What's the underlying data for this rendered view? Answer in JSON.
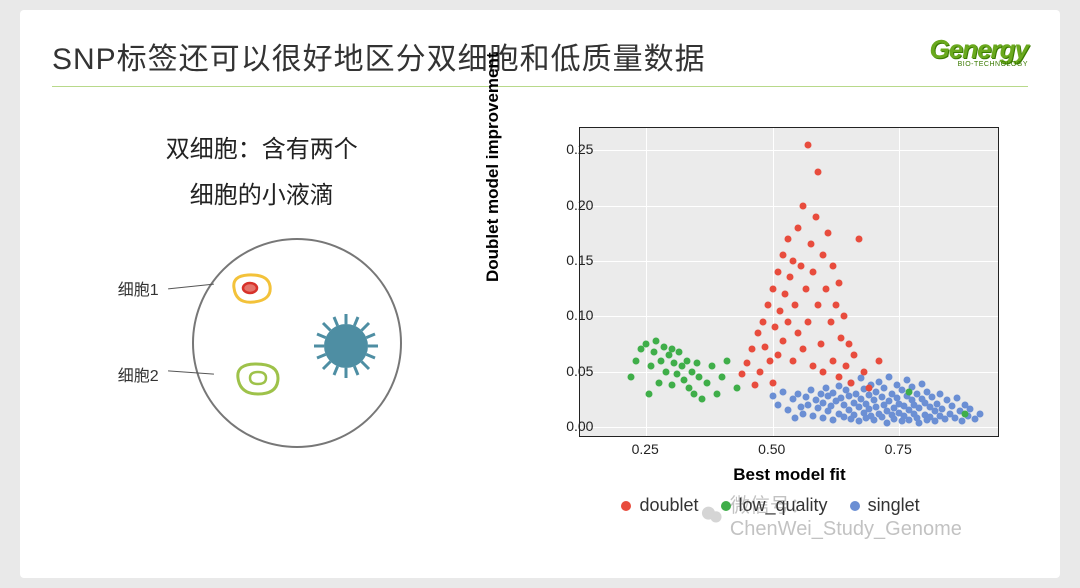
{
  "header": {
    "title": "SNP标签还可以很好地区分双细胞和低质量数据",
    "logo_main": "Genergy",
    "logo_sub": "BIO-TECHNOLOGY"
  },
  "left": {
    "caption_line1": "双细胞：含有两个",
    "caption_line2": "细胞的小液滴",
    "label_cell1": "细胞1",
    "label_cell2": "细胞2",
    "diagram_colors": {
      "droplet_border": "#777777",
      "cell1_outer": "#f3c23a",
      "cell1_inner_stroke": "#d7322a",
      "cell1_inner_fill": "#e5746b",
      "cell2_stroke": "#9ec24a",
      "virus_fill": "#4e8ea3",
      "virus_spike": "#4e8ea3"
    }
  },
  "chart": {
    "type": "scatter",
    "xlabel": "Best model fit",
    "ylabel": "Doublet model improvement",
    "xlim": [
      0.12,
      0.95
    ],
    "ylim": [
      -0.01,
      0.27
    ],
    "xticks": [
      0.25,
      0.5,
      0.75
    ],
    "yticks": [
      0.0,
      0.05,
      0.1,
      0.15,
      0.2,
      0.25
    ],
    "background_color": "#ebebeb",
    "grid_color": "#ffffff",
    "point_size": 7,
    "colors": {
      "doublet": "#e84c3d",
      "low_quality": "#3fae49",
      "singlet": "#6b8fd4"
    },
    "legend": {
      "items": [
        {
          "key": "doublet",
          "label": "doublet"
        },
        {
          "key": "low_quality",
          "label": "low_quality"
        },
        {
          "key": "singlet",
          "label": "singlet"
        }
      ]
    },
    "series": {
      "low_quality": [
        [
          0.22,
          0.045
        ],
        [
          0.23,
          0.06
        ],
        [
          0.24,
          0.07
        ],
        [
          0.25,
          0.075
        ],
        [
          0.255,
          0.03
        ],
        [
          0.26,
          0.055
        ],
        [
          0.265,
          0.068
        ],
        [
          0.27,
          0.078
        ],
        [
          0.275,
          0.04
        ],
        [
          0.28,
          0.06
        ],
        [
          0.285,
          0.072
        ],
        [
          0.29,
          0.05
        ],
        [
          0.295,
          0.065
        ],
        [
          0.3,
          0.07
        ],
        [
          0.3,
          0.038
        ],
        [
          0.305,
          0.058
        ],
        [
          0.31,
          0.048
        ],
        [
          0.315,
          0.068
        ],
        [
          0.32,
          0.055
        ],
        [
          0.325,
          0.042
        ],
        [
          0.33,
          0.06
        ],
        [
          0.335,
          0.035
        ],
        [
          0.34,
          0.05
        ],
        [
          0.345,
          0.03
        ],
        [
          0.35,
          0.058
        ],
        [
          0.355,
          0.045
        ],
        [
          0.36,
          0.025
        ],
        [
          0.37,
          0.04
        ],
        [
          0.38,
          0.055
        ],
        [
          0.39,
          0.03
        ],
        [
          0.4,
          0.045
        ],
        [
          0.41,
          0.06
        ],
        [
          0.43,
          0.035
        ],
        [
          0.77,
          0.032
        ],
        [
          0.88,
          0.012
        ]
      ],
      "doublet": [
        [
          0.44,
          0.048
        ],
        [
          0.45,
          0.058
        ],
        [
          0.46,
          0.07
        ],
        [
          0.465,
          0.038
        ],
        [
          0.47,
          0.085
        ],
        [
          0.475,
          0.05
        ],
        [
          0.48,
          0.095
        ],
        [
          0.485,
          0.072
        ],
        [
          0.49,
          0.11
        ],
        [
          0.495,
          0.06
        ],
        [
          0.5,
          0.125
        ],
        [
          0.5,
          0.04
        ],
        [
          0.505,
          0.09
        ],
        [
          0.51,
          0.14
        ],
        [
          0.51,
          0.065
        ],
        [
          0.515,
          0.105
        ],
        [
          0.52,
          0.155
        ],
        [
          0.52,
          0.078
        ],
        [
          0.525,
          0.12
        ],
        [
          0.53,
          0.17
        ],
        [
          0.53,
          0.095
        ],
        [
          0.535,
          0.135
        ],
        [
          0.54,
          0.06
        ],
        [
          0.54,
          0.15
        ],
        [
          0.545,
          0.11
        ],
        [
          0.55,
          0.18
        ],
        [
          0.55,
          0.085
        ],
        [
          0.555,
          0.145
        ],
        [
          0.56,
          0.07
        ],
        [
          0.56,
          0.2
        ],
        [
          0.565,
          0.125
        ],
        [
          0.57,
          0.255
        ],
        [
          0.57,
          0.095
        ],
        [
          0.575,
          0.165
        ],
        [
          0.58,
          0.055
        ],
        [
          0.58,
          0.14
        ],
        [
          0.585,
          0.19
        ],
        [
          0.59,
          0.11
        ],
        [
          0.59,
          0.23
        ],
        [
          0.595,
          0.075
        ],
        [
          0.6,
          0.155
        ],
        [
          0.6,
          0.05
        ],
        [
          0.605,
          0.125
        ],
        [
          0.61,
          0.175
        ],
        [
          0.615,
          0.095
        ],
        [
          0.62,
          0.06
        ],
        [
          0.62,
          0.145
        ],
        [
          0.625,
          0.11
        ],
        [
          0.63,
          0.045
        ],
        [
          0.63,
          0.13
        ],
        [
          0.635,
          0.08
        ],
        [
          0.64,
          0.1
        ],
        [
          0.645,
          0.055
        ],
        [
          0.65,
          0.075
        ],
        [
          0.655,
          0.04
        ],
        [
          0.66,
          0.065
        ],
        [
          0.67,
          0.17
        ],
        [
          0.68,
          0.05
        ],
        [
          0.69,
          0.035
        ],
        [
          0.71,
          0.06
        ]
      ],
      "singlet": [
        [
          0.5,
          0.028
        ],
        [
          0.51,
          0.02
        ],
        [
          0.52,
          0.032
        ],
        [
          0.53,
          0.015
        ],
        [
          0.54,
          0.025
        ],
        [
          0.545,
          0.008
        ],
        [
          0.55,
          0.03
        ],
        [
          0.555,
          0.018
        ],
        [
          0.56,
          0.012
        ],
        [
          0.565,
          0.027
        ],
        [
          0.57,
          0.02
        ],
        [
          0.575,
          0.033
        ],
        [
          0.58,
          0.01
        ],
        [
          0.585,
          0.024
        ],
        [
          0.59,
          0.017
        ],
        [
          0.595,
          0.03
        ],
        [
          0.6,
          0.008
        ],
        [
          0.6,
          0.022
        ],
        [
          0.605,
          0.035
        ],
        [
          0.61,
          0.014
        ],
        [
          0.61,
          0.028
        ],
        [
          0.615,
          0.019
        ],
        [
          0.62,
          0.006
        ],
        [
          0.62,
          0.031
        ],
        [
          0.625,
          0.023
        ],
        [
          0.63,
          0.012
        ],
        [
          0.63,
          0.037
        ],
        [
          0.635,
          0.026
        ],
        [
          0.64,
          0.009
        ],
        [
          0.64,
          0.02
        ],
        [
          0.645,
          0.033
        ],
        [
          0.65,
          0.015
        ],
        [
          0.65,
          0.028
        ],
        [
          0.655,
          0.007
        ],
        [
          0.655,
          0.04
        ],
        [
          0.66,
          0.022
        ],
        [
          0.66,
          0.011
        ],
        [
          0.665,
          0.03
        ],
        [
          0.67,
          0.018
        ],
        [
          0.67,
          0.005
        ],
        [
          0.675,
          0.025
        ],
        [
          0.675,
          0.044
        ],
        [
          0.68,
          0.013
        ],
        [
          0.68,
          0.034
        ],
        [
          0.685,
          0.021
        ],
        [
          0.685,
          0.008
        ],
        [
          0.69,
          0.029
        ],
        [
          0.69,
          0.016
        ],
        [
          0.695,
          0.038
        ],
        [
          0.695,
          0.01
        ],
        [
          0.7,
          0.024
        ],
        [
          0.7,
          0.006
        ],
        [
          0.705,
          0.032
        ],
        [
          0.705,
          0.018
        ],
        [
          0.71,
          0.012
        ],
        [
          0.71,
          0.041
        ],
        [
          0.715,
          0.027
        ],
        [
          0.715,
          0.009
        ],
        [
          0.72,
          0.02
        ],
        [
          0.72,
          0.035
        ],
        [
          0.725,
          0.014
        ],
        [
          0.725,
          0.004
        ],
        [
          0.73,
          0.023
        ],
        [
          0.73,
          0.045
        ],
        [
          0.735,
          0.011
        ],
        [
          0.735,
          0.03
        ],
        [
          0.74,
          0.017
        ],
        [
          0.74,
          0.007
        ],
        [
          0.745,
          0.026
        ],
        [
          0.745,
          0.038
        ],
        [
          0.75,
          0.013
        ],
        [
          0.75,
          0.021
        ],
        [
          0.755,
          0.005
        ],
        [
          0.755,
          0.033
        ],
        [
          0.76,
          0.019
        ],
        [
          0.76,
          0.01
        ],
        [
          0.765,
          0.028
        ],
        [
          0.765,
          0.042
        ],
        [
          0.77,
          0.015
        ],
        [
          0.77,
          0.006
        ],
        [
          0.775,
          0.024
        ],
        [
          0.775,
          0.036
        ],
        [
          0.78,
          0.012
        ],
        [
          0.78,
          0.02
        ],
        [
          0.785,
          0.008
        ],
        [
          0.785,
          0.03
        ],
        [
          0.79,
          0.017
        ],
        [
          0.79,
          0.004
        ],
        [
          0.795,
          0.025
        ],
        [
          0.795,
          0.039
        ],
        [
          0.8,
          0.011
        ],
        [
          0.8,
          0.022
        ],
        [
          0.805,
          0.006
        ],
        [
          0.805,
          0.032
        ],
        [
          0.81,
          0.018
        ],
        [
          0.81,
          0.009
        ],
        [
          0.815,
          0.027
        ],
        [
          0.82,
          0.014
        ],
        [
          0.82,
          0.005
        ],
        [
          0.825,
          0.021
        ],
        [
          0.83,
          0.01
        ],
        [
          0.83,
          0.03
        ],
        [
          0.835,
          0.016
        ],
        [
          0.84,
          0.007
        ],
        [
          0.845,
          0.024
        ],
        [
          0.85,
          0.012
        ],
        [
          0.855,
          0.019
        ],
        [
          0.86,
          0.008
        ],
        [
          0.865,
          0.026
        ],
        [
          0.87,
          0.014
        ],
        [
          0.875,
          0.005
        ],
        [
          0.88,
          0.02
        ],
        [
          0.885,
          0.01
        ],
        [
          0.89,
          0.016
        ],
        [
          0.9,
          0.007
        ],
        [
          0.91,
          0.012
        ]
      ]
    }
  },
  "watermark": {
    "text": "微信号：ChenWei_Study_Genome"
  }
}
